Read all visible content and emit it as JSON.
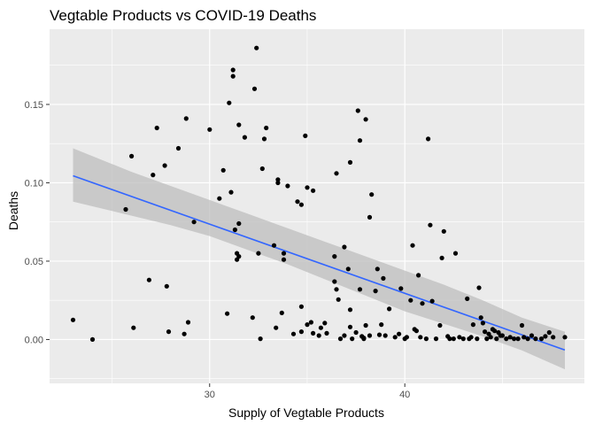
{
  "chart_data": {
    "type": "scatter",
    "title": "Vegtable Products vs COVID-19 Deaths",
    "xlabel": "Supply of Vegtable Products",
    "ylabel": "Deaths",
    "xlim": [
      21.8,
      49.2
    ],
    "ylim": [
      -0.028,
      0.198
    ],
    "x_ticks": [
      30,
      40
    ],
    "y_ticks": [
      0.0,
      0.05,
      0.1,
      0.15
    ],
    "y_tick_labels": [
      "0.00",
      "0.05",
      "0.10",
      "0.15"
    ],
    "grid": true,
    "colors": {
      "panel": "#ebebeb",
      "grid": "#ffffff",
      "points": "#000000",
      "fit": "#3366ff",
      "band": "#bebebe"
    },
    "fit_line": {
      "x": [
        23.0,
        48.2
      ],
      "y": [
        0.1045,
        -0.0067
      ]
    },
    "confidence_band": {
      "x": [
        23.0,
        24.0,
        26.0,
        28.0,
        30.0,
        32.0,
        34.0,
        36.0,
        38.0,
        40.0,
        42.0,
        44.0,
        46.0,
        48.2
      ],
      "lower": [
        0.088,
        0.085,
        0.079,
        0.073,
        0.066,
        0.057,
        0.048,
        0.038,
        0.028,
        0.018,
        0.01,
        0.002,
        -0.007,
        -0.019
      ],
      "upper": [
        0.122,
        0.117,
        0.107,
        0.098,
        0.089,
        0.08,
        0.071,
        0.062,
        0.053,
        0.044,
        0.035,
        0.025,
        0.014,
        0.005
      ]
    },
    "points": [
      {
        "x": 23.0,
        "y": 0.0125
      },
      {
        "x": 24.0,
        "y": 0.0
      },
      {
        "x": 25.7,
        "y": 0.083
      },
      {
        "x": 26.0,
        "y": 0.117
      },
      {
        "x": 26.1,
        "y": 0.0075
      },
      {
        "x": 26.9,
        "y": 0.038
      },
      {
        "x": 27.1,
        "y": 0.105
      },
      {
        "x": 27.3,
        "y": 0.135
      },
      {
        "x": 27.7,
        "y": 0.111
      },
      {
        "x": 27.8,
        "y": 0.034
      },
      {
        "x": 27.9,
        "y": 0.005
      },
      {
        "x": 28.4,
        "y": 0.122
      },
      {
        "x": 28.7,
        "y": 0.0035
      },
      {
        "x": 28.8,
        "y": 0.141
      },
      {
        "x": 28.9,
        "y": 0.011
      },
      {
        "x": 29.2,
        "y": 0.075
      },
      {
        "x": 30.0,
        "y": 0.134
      },
      {
        "x": 30.5,
        "y": 0.09
      },
      {
        "x": 30.7,
        "y": 0.108
      },
      {
        "x": 30.9,
        "y": 0.0165
      },
      {
        "x": 31.0,
        "y": 0.151
      },
      {
        "x": 31.1,
        "y": 0.094
      },
      {
        "x": 31.2,
        "y": 0.172
      },
      {
        "x": 31.2,
        "y": 0.168
      },
      {
        "x": 31.3,
        "y": 0.07
      },
      {
        "x": 31.4,
        "y": 0.055
      },
      {
        "x": 31.4,
        "y": 0.051
      },
      {
        "x": 31.5,
        "y": 0.053
      },
      {
        "x": 31.5,
        "y": 0.137
      },
      {
        "x": 31.5,
        "y": 0.074
      },
      {
        "x": 31.8,
        "y": 0.129
      },
      {
        "x": 32.2,
        "y": 0.014
      },
      {
        "x": 32.3,
        "y": 0.16
      },
      {
        "x": 32.4,
        "y": 0.186
      },
      {
        "x": 32.5,
        "y": 0.055
      },
      {
        "x": 32.6,
        "y": 0.0005
      },
      {
        "x": 32.7,
        "y": 0.109
      },
      {
        "x": 32.8,
        "y": 0.128
      },
      {
        "x": 32.9,
        "y": 0.135
      },
      {
        "x": 33.3,
        "y": 0.06
      },
      {
        "x": 33.4,
        "y": 0.0075
      },
      {
        "x": 33.5,
        "y": 0.102
      },
      {
        "x": 33.5,
        "y": 0.1
      },
      {
        "x": 33.7,
        "y": 0.017
      },
      {
        "x": 33.8,
        "y": 0.055
      },
      {
        "x": 33.8,
        "y": 0.051
      },
      {
        "x": 34.0,
        "y": 0.098
      },
      {
        "x": 34.3,
        "y": 0.0035
      },
      {
        "x": 34.5,
        "y": 0.088
      },
      {
        "x": 34.7,
        "y": 0.021
      },
      {
        "x": 34.7,
        "y": 0.005
      },
      {
        "x": 34.7,
        "y": 0.086
      },
      {
        "x": 34.9,
        "y": 0.13
      },
      {
        "x": 35.0,
        "y": 0.097
      },
      {
        "x": 35.0,
        "y": 0.0095
      },
      {
        "x": 35.2,
        "y": 0.011
      },
      {
        "x": 35.3,
        "y": 0.095
      },
      {
        "x": 35.3,
        "y": 0.004
      },
      {
        "x": 35.6,
        "y": 0.0025
      },
      {
        "x": 35.7,
        "y": 0.0075
      },
      {
        "x": 35.9,
        "y": 0.0105
      },
      {
        "x": 36.0,
        "y": 0.004
      },
      {
        "x": 36.4,
        "y": 0.053
      },
      {
        "x": 36.4,
        "y": 0.037
      },
      {
        "x": 36.5,
        "y": 0.032
      },
      {
        "x": 36.5,
        "y": 0.106
      },
      {
        "x": 36.6,
        "y": 0.0255
      },
      {
        "x": 36.7,
        "y": 0.0005
      },
      {
        "x": 36.9,
        "y": 0.0025
      },
      {
        "x": 36.9,
        "y": 0.059
      },
      {
        "x": 37.1,
        "y": 0.045
      },
      {
        "x": 37.2,
        "y": 0.113
      },
      {
        "x": 37.2,
        "y": 0.008
      },
      {
        "x": 37.2,
        "y": 0.019
      },
      {
        "x": 37.3,
        "y": 0.0005
      },
      {
        "x": 37.5,
        "y": 0.0045
      },
      {
        "x": 37.6,
        "y": 0.146
      },
      {
        "x": 37.7,
        "y": 0.032
      },
      {
        "x": 37.7,
        "y": 0.127
      },
      {
        "x": 37.8,
        "y": 0.002
      },
      {
        "x": 37.9,
        "y": 0.001
      },
      {
        "x": 37.9,
        "y": 0.0005
      },
      {
        "x": 38.0,
        "y": 0.1405
      },
      {
        "x": 38.0,
        "y": 0.009
      },
      {
        "x": 38.2,
        "y": 0.078
      },
      {
        "x": 38.2,
        "y": 0.0025
      },
      {
        "x": 38.3,
        "y": 0.0925
      },
      {
        "x": 38.5,
        "y": 0.031
      },
      {
        "x": 38.6,
        "y": 0.045
      },
      {
        "x": 38.7,
        "y": 0.003
      },
      {
        "x": 38.8,
        "y": 0.0095
      },
      {
        "x": 38.9,
        "y": 0.039
      },
      {
        "x": 39.0,
        "y": 0.0025
      },
      {
        "x": 39.2,
        "y": 0.0195
      },
      {
        "x": 39.5,
        "y": 0.0015
      },
      {
        "x": 39.7,
        "y": 0.0035
      },
      {
        "x": 39.8,
        "y": 0.0325
      },
      {
        "x": 40.0,
        "y": 0.0005
      },
      {
        "x": 40.1,
        "y": 0.0015
      },
      {
        "x": 40.3,
        "y": 0.025
      },
      {
        "x": 40.4,
        "y": 0.06
      },
      {
        "x": 40.5,
        "y": 0.0065
      },
      {
        "x": 40.6,
        "y": 0.0055
      },
      {
        "x": 40.7,
        "y": 0.041
      },
      {
        "x": 40.8,
        "y": 0.0015
      },
      {
        "x": 40.9,
        "y": 0.023
      },
      {
        "x": 41.1,
        "y": 0.0005
      },
      {
        "x": 41.2,
        "y": 0.128
      },
      {
        "x": 41.3,
        "y": 0.073
      },
      {
        "x": 41.4,
        "y": 0.0245
      },
      {
        "x": 41.6,
        "y": 0.0005
      },
      {
        "x": 41.8,
        "y": 0.009
      },
      {
        "x": 41.9,
        "y": 0.052
      },
      {
        "x": 42.0,
        "y": 0.069
      },
      {
        "x": 42.2,
        "y": 0.002
      },
      {
        "x": 42.3,
        "y": 0.0005
      },
      {
        "x": 42.5,
        "y": 0.0005
      },
      {
        "x": 42.6,
        "y": 0.055
      },
      {
        "x": 42.8,
        "y": 0.0015
      },
      {
        "x": 43.0,
        "y": 0.0005
      },
      {
        "x": 43.2,
        "y": 0.026
      },
      {
        "x": 43.3,
        "y": 0.0005
      },
      {
        "x": 43.4,
        "y": 0.0015
      },
      {
        "x": 43.5,
        "y": 0.0095
      },
      {
        "x": 43.7,
        "y": 0.0005
      },
      {
        "x": 43.8,
        "y": 0.033
      },
      {
        "x": 43.9,
        "y": 0.014
      },
      {
        "x": 44.0,
        "y": 0.0105
      },
      {
        "x": 44.1,
        "y": 0.005
      },
      {
        "x": 44.2,
        "y": 0.0005
      },
      {
        "x": 44.3,
        "y": 0.0035
      },
      {
        "x": 44.4,
        "y": 0.0015
      },
      {
        "x": 44.5,
        "y": 0.0065
      },
      {
        "x": 44.6,
        "y": 0.0055
      },
      {
        "x": 44.7,
        "y": 0.0005
      },
      {
        "x": 44.8,
        "y": 0.0045
      },
      {
        "x": 44.9,
        "y": 0.0025
      },
      {
        "x": 45.0,
        "y": 0.0025
      },
      {
        "x": 45.2,
        "y": 0.0005
      },
      {
        "x": 45.4,
        "y": 0.0015
      },
      {
        "x": 45.6,
        "y": 0.0005
      },
      {
        "x": 45.8,
        "y": 0.0005
      },
      {
        "x": 46.0,
        "y": 0.009
      },
      {
        "x": 46.1,
        "y": 0.0015
      },
      {
        "x": 46.3,
        "y": 0.0005
      },
      {
        "x": 46.5,
        "y": 0.0025
      },
      {
        "x": 46.7,
        "y": 0.0005
      },
      {
        "x": 47.0,
        "y": 0.0005
      },
      {
        "x": 47.2,
        "y": 0.002
      },
      {
        "x": 47.4,
        "y": 0.0045
      },
      {
        "x": 47.6,
        "y": 0.0015
      },
      {
        "x": 48.2,
        "y": 0.0015
      }
    ]
  }
}
